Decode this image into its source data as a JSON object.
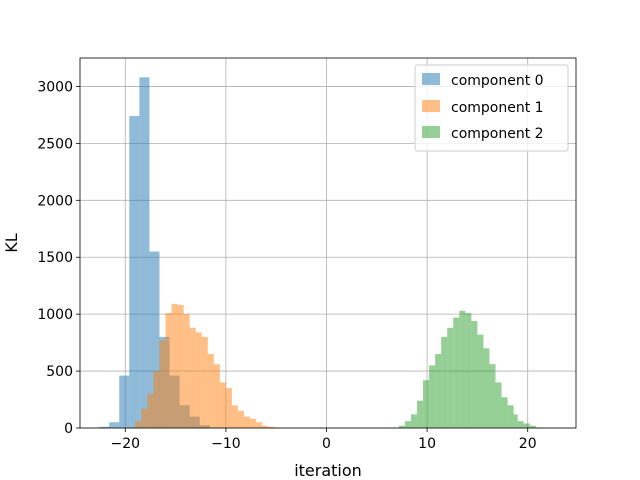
{
  "chart_data": {
    "type": "bar",
    "subtype": "overlapping-histogram",
    "xlabel": "iteration",
    "ylabel": "KL",
    "xlim": [
      -24.5,
      24.8
    ],
    "ylim": [
      0,
      3250
    ],
    "xticks": [
      -20,
      -10,
      0,
      10,
      20
    ],
    "xtick_labels": [
      "−20",
      "−10",
      "0",
      "10",
      "20"
    ],
    "yticks": [
      0,
      500,
      1000,
      1500,
      2000,
      2500,
      3000
    ],
    "ytick_labels": [
      "0",
      "500",
      "1000",
      "1500",
      "2000",
      "2500",
      "3000"
    ],
    "grid": true,
    "legend_position": "top-right",
    "bar_opacity": 0.5,
    "series": [
      {
        "name": "component 0",
        "color": "#1f77b4",
        "bin_edges": [
          -22.6,
          -21.6,
          -20.6,
          -19.6,
          -18.6,
          -17.6,
          -16.6,
          -15.6,
          -14.6,
          -13.6,
          -12.6,
          -11.6,
          -10.6
        ],
        "counts": [
          10,
          50,
          460,
          2740,
          3080,
          1550,
          800,
          460,
          200,
          100,
          25,
          5
        ]
      },
      {
        "name": "component 1",
        "color": "#ff7f0e",
        "bin_edges": [
          -19.6,
          -19.0,
          -18.4,
          -17.8,
          -17.2,
          -16.6,
          -16.0,
          -15.4,
          -14.8,
          -14.2,
          -13.6,
          -13.0,
          -12.4,
          -11.8,
          -11.2,
          -10.6,
          -10.0,
          -9.4,
          -8.8,
          -8.2,
          -7.6,
          -7.0,
          -6.4,
          -5.8,
          -5.2,
          -4.6,
          -4.0
        ],
        "counts": [
          5,
          60,
          170,
          300,
          500,
          770,
          1010,
          1090,
          1080,
          1000,
          880,
          840,
          800,
          650,
          560,
          400,
          350,
          200,
          150,
          100,
          80,
          50,
          20,
          10,
          5,
          2
        ]
      },
      {
        "name": "component 2",
        "color": "#2ca02c",
        "bin_edges": [
          6.6,
          7.2,
          7.8,
          8.4,
          9.0,
          9.6,
          10.2,
          10.8,
          11.4,
          12.0,
          12.6,
          13.2,
          13.8,
          14.4,
          15.0,
          15.6,
          16.2,
          16.8,
          17.4,
          18.0,
          18.6,
          19.0,
          19.6,
          20.2,
          20.8,
          21.4
        ],
        "counts": [
          5,
          20,
          60,
          120,
          240,
          420,
          550,
          650,
          800,
          880,
          970,
          1030,
          1010,
          940,
          820,
          700,
          560,
          400,
          270,
          200,
          120,
          60,
          40,
          20,
          5
        ]
      }
    ]
  }
}
